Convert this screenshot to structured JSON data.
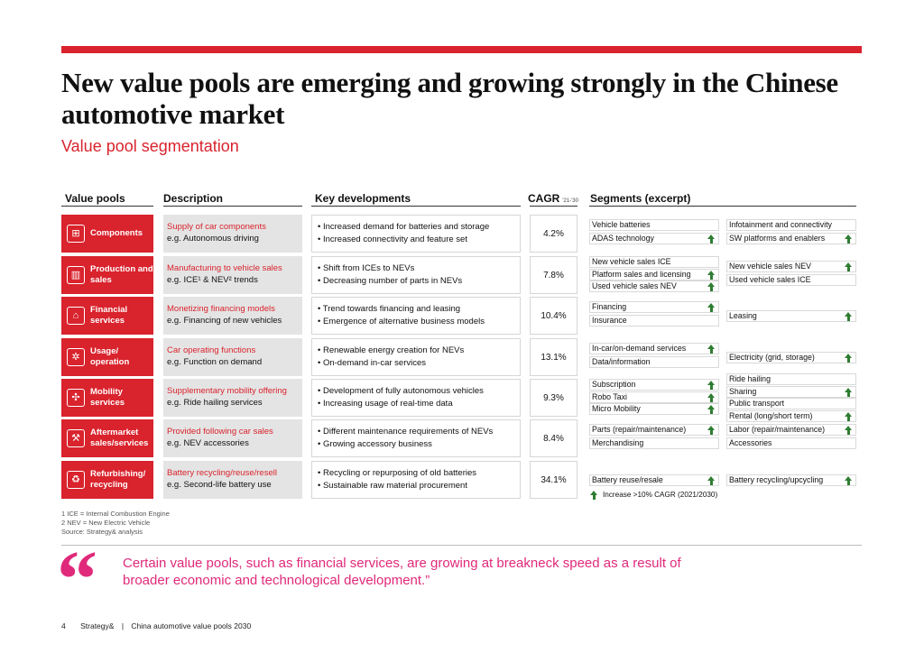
{
  "title": "New value pools are emerging and growing strongly in the Chinese automotive market",
  "subtitle": "Value pool segmentation",
  "headers": {
    "value_pools": "Value pools",
    "description": "Description",
    "key_developments": "Key developments",
    "cagr": "CAGR",
    "cagr_sub": "'21-'30",
    "segments": "Segments (excerpt)"
  },
  "rows": [
    {
      "name": "Components",
      "icon": "car-component-icon",
      "desc1": "Supply of car components",
      "desc2": "e.g. Autonomous driving",
      "kd": [
        "Increased demand for batteries and storage",
        "Increased connectivity and feature set"
      ],
      "cagr": "4.2%"
    },
    {
      "name": "Production and sales",
      "icon": "factory-icon",
      "desc1": "Manufacturing to vehicle sales",
      "desc2": "e.g. ICE¹ & NEV² trends",
      "kd": [
        "Shift from ICEs to NEVs",
        "Decreasing number of parts in NEVs"
      ],
      "cagr": "7.8%"
    },
    {
      "name": "Financial services",
      "icon": "bank-icon",
      "desc1": "Monetizing financing models",
      "desc2": "e.g. Financing of new vehicles",
      "kd": [
        "Trend towards financing and leasing",
        "Emergence of alternative business models"
      ],
      "cagr": "10.4%"
    },
    {
      "name": "Usage/ operation",
      "icon": "gear-icon",
      "desc1": "Car operating functions",
      "desc2": "e.g. Function on demand",
      "kd": [
        "Renewable energy creation for NEVs",
        "On-demand in-car services"
      ],
      "cagr": "13.1%"
    },
    {
      "name": "Mobility services",
      "icon": "network-icon",
      "desc1": "Supplementary mobility offering",
      "desc2": "e.g. Ride hailing services",
      "kd": [
        "Development of fully autonomous vehicles",
        "Increasing usage of real-time data"
      ],
      "cagr": "9.3%"
    },
    {
      "name": "Aftermarket sales/services",
      "icon": "repair-icon",
      "desc1": "Provided following car sales",
      "desc2": "e.g. NEV accessories",
      "kd": [
        "Different maintenance requirements of NEVs",
        "Growing accessory business"
      ],
      "cagr": "8.4%"
    },
    {
      "name": "Refurbishing/ recycling",
      "icon": "recycle-icon",
      "desc1": "Battery recycling/reuse/resell",
      "desc2": "e.g. Second-life battery use",
      "kd": [
        "Recycling or repurposing of old batteries",
        "Sustainable raw material procurement"
      ],
      "cagr": "34.1%"
    }
  ],
  "segments": {
    "r0l": [
      {
        "t": "Vehicle batteries",
        "up": false
      },
      {
        "t": "ADAS technology",
        "up": true
      }
    ],
    "r0r": [
      {
        "t": "Infotainment and connectivity",
        "up": false
      },
      {
        "t": "SW platforms and enablers",
        "up": true
      }
    ],
    "r1l": [
      {
        "t": "New vehicle sales ICE",
        "up": false
      },
      {
        "t": "Platform sales and licensing",
        "up": true
      },
      {
        "t": "Used vehicle sales NEV",
        "up": true
      }
    ],
    "r1r": [
      {
        "t": "New vehicle sales NEV",
        "up": true
      },
      {
        "t": "Used vehicle sales ICE",
        "up": false
      }
    ],
    "r2l": [
      {
        "t": "Financing",
        "up": true
      },
      {
        "t": "Insurance",
        "up": false
      }
    ],
    "r2r": [
      {
        "t": "Leasing",
        "up": true
      }
    ],
    "r3l": [
      {
        "t": "In-car/on-demand services",
        "up": true
      },
      {
        "t": "Data/information",
        "up": false
      }
    ],
    "r3r": [
      {
        "t": "Electricity (grid, storage)",
        "up": true
      }
    ],
    "r4l": [
      {
        "t": "Subscription",
        "up": true
      },
      {
        "t": "Robo Taxi",
        "up": true
      },
      {
        "t": "Micro Mobility",
        "up": true
      }
    ],
    "r4r": [
      {
        "t": "Ride hailing",
        "up": false
      },
      {
        "t": "Sharing",
        "up": true
      },
      {
        "t": "Public transport",
        "up": false
      },
      {
        "t": "Rental (long/short term)",
        "up": true
      }
    ],
    "r5l": [
      {
        "t": "Parts (repair/maintenance)",
        "up": true
      },
      {
        "t": "Merchandising",
        "up": false
      }
    ],
    "r5r": [
      {
        "t": "Labor (repair/maintenance)",
        "up": true
      },
      {
        "t": "Accessories",
        "up": false
      }
    ],
    "r6l": [
      {
        "t": "Battery reuse/resale",
        "up": true
      }
    ],
    "r6r": [
      {
        "t": "Battery recycling/upcycling",
        "up": true
      }
    ]
  },
  "legend": "Increase >10% CAGR (2021/2030)",
  "footnotes": [
    "1 ICE = Internal Combustion Engine",
    "2 NEV = New Electric Vehicle",
    "Source: Strategy& analysis"
  ],
  "quote": "Certain value pools, such as financial services, are growing at breakneck speed as a result of broader economic and technological development.”",
  "footer": {
    "page": "4",
    "brand": "Strategy&",
    "sep": "|",
    "doc": "China automotive value pools 2030"
  },
  "colors": {
    "accent": "#d9232d",
    "quote": "#e0297a",
    "arrow": "#2f7d32"
  }
}
